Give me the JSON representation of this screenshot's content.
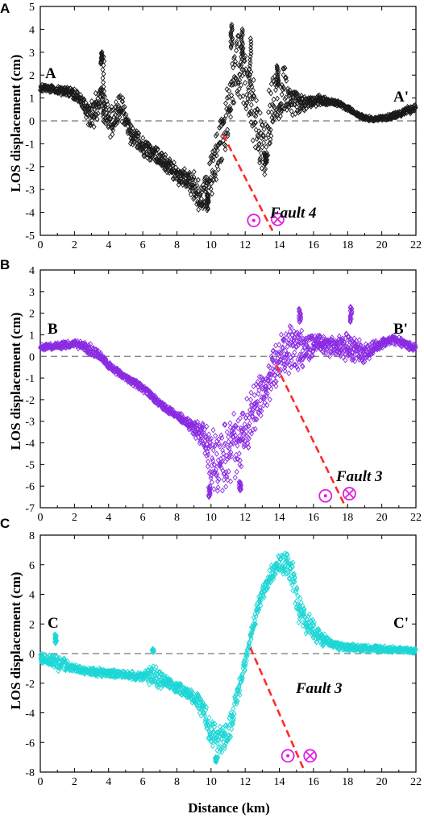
{
  "figure": {
    "x_label": "Distance (km)",
    "y_label": "LOS displacement (cm)"
  },
  "colors": {
    "panel_A": "#1a1a1a",
    "panel_B": "#8a2be2",
    "panel_C": "#1ed6d6",
    "fault_line": "#ff2a2a",
    "symbol": "#e020e0",
    "zero_line": "#777777"
  },
  "chart_data": [
    {
      "type": "scatter",
      "panel": "A",
      "start_label": "A",
      "end_label": "A'",
      "fault_label": "Fault 4",
      "xlim": [
        0,
        22
      ],
      "ylim": [
        -5,
        5
      ],
      "xticks": [
        0,
        2,
        4,
        6,
        8,
        10,
        12,
        14,
        16,
        18,
        20,
        22
      ],
      "yticks": [
        -5,
        -4,
        -3,
        -2,
        -1,
        0,
        1,
        2,
        3,
        4,
        5
      ],
      "marker": "diamond-open",
      "zero_line": true,
      "fault_trace": [
        [
          10.7,
          -0.6
        ],
        [
          13.6,
          -4.8
        ]
      ],
      "motion_symbols": [
        {
          "type": "out-of-page",
          "x": 12.5,
          "y": -4.35
        },
        {
          "type": "into-page",
          "x": 13.9,
          "y": -4.3
        }
      ],
      "profile": [
        [
          0.0,
          1.45
        ],
        [
          0.5,
          1.4
        ],
        [
          1.0,
          1.35
        ],
        [
          1.5,
          1.3
        ],
        [
          2.0,
          1.2
        ],
        [
          2.5,
          0.8
        ],
        [
          2.8,
          0.3
        ],
        [
          3.0,
          0.2
        ],
        [
          3.3,
          0.7
        ],
        [
          3.6,
          0.9
        ],
        [
          3.8,
          0.5
        ],
        [
          4.1,
          -0.2
        ],
        [
          4.5,
          0.4
        ],
        [
          4.8,
          0.6
        ],
        [
          5.0,
          0.3
        ],
        [
          5.3,
          -0.6
        ],
        [
          5.6,
          -0.7
        ],
        [
          6.0,
          -1.1
        ],
        [
          6.5,
          -1.4
        ],
        [
          7.0,
          -1.6
        ],
        [
          7.5,
          -2.0
        ],
        [
          8.0,
          -2.3
        ],
        [
          8.5,
          -2.6
        ],
        [
          9.0,
          -2.9
        ],
        [
          9.5,
          -3.3
        ],
        [
          10.0,
          -2.6
        ],
        [
          10.4,
          -1.3
        ],
        [
          10.8,
          -0.2
        ],
        [
          11.2,
          1.5
        ],
        [
          11.6,
          2.6
        ],
        [
          12.0,
          1.8
        ],
        [
          12.4,
          0.6
        ],
        [
          12.8,
          -0.5
        ],
        [
          13.2,
          -0.9
        ],
        [
          13.5,
          0.4
        ],
        [
          13.9,
          1.3
        ],
        [
          14.3,
          1.4
        ],
        [
          14.8,
          0.9
        ],
        [
          15.2,
          0.7
        ],
        [
          16.0,
          0.9
        ],
        [
          17.0,
          0.85
        ],
        [
          17.5,
          0.75
        ],
        [
          18.0,
          0.55
        ],
        [
          18.5,
          0.3
        ],
        [
          19.0,
          0.12
        ],
        [
          19.5,
          0.08
        ],
        [
          20.0,
          0.1
        ],
        [
          20.5,
          0.2
        ],
        [
          21.0,
          0.3
        ],
        [
          21.5,
          0.45
        ],
        [
          22.0,
          0.55
        ]
      ],
      "spread": [
        [
          0.0,
          0.12
        ],
        [
          2.5,
          0.25
        ],
        [
          3.3,
          0.8
        ],
        [
          4.0,
          0.6
        ],
        [
          5.5,
          0.5
        ],
        [
          7.0,
          0.35
        ],
        [
          8.5,
          0.4
        ],
        [
          9.5,
          0.8
        ],
        [
          10.5,
          1.2
        ],
        [
          11.5,
          1.3
        ],
        [
          12.5,
          1.4
        ],
        [
          13.5,
          1.4
        ],
        [
          14.5,
          0.8
        ],
        [
          15.5,
          0.3
        ],
        [
          17.0,
          0.12
        ],
        [
          19.0,
          0.08
        ],
        [
          20.0,
          0.1
        ],
        [
          22.0,
          0.15
        ]
      ],
      "spikes": [
        [
          3.6,
          2.5,
          3.0
        ],
        [
          3.7,
          2.8,
          0.0
        ],
        [
          11.2,
          3.2,
          4.2
        ],
        [
          11.8,
          2.8,
          4.0
        ],
        [
          12.3,
          1.6,
          3.6
        ],
        [
          9.8,
          -3.2,
          -3.9
        ],
        [
          13.2,
          -1.4,
          -1.9
        ],
        [
          13.9,
          1.6,
          2.4
        ]
      ]
    },
    {
      "type": "scatter",
      "panel": "B",
      "start_label": "B",
      "end_label": "B'",
      "fault_label": "Fault 3",
      "xlim": [
        0,
        22
      ],
      "ylim": [
        -7,
        4
      ],
      "xticks": [
        0,
        2,
        4,
        6,
        8,
        10,
        12,
        14,
        16,
        18,
        20,
        22
      ],
      "yticks": [
        -7,
        -6,
        -5,
        -4,
        -3,
        -2,
        -1,
        0,
        1,
        2,
        3,
        4
      ],
      "marker": "diamond-open",
      "zero_line": true,
      "fault_trace": [
        [
          13.8,
          -0.4
        ],
        [
          17.9,
          -7.0
        ]
      ],
      "motion_symbols": [
        {
          "type": "out-of-page",
          "x": 16.7,
          "y": -6.45
        },
        {
          "type": "into-page",
          "x": 18.1,
          "y": -6.35
        }
      ],
      "profile": [
        [
          0.0,
          0.4
        ],
        [
          0.5,
          0.45
        ],
        [
          1.0,
          0.5
        ],
        [
          1.5,
          0.55
        ],
        [
          2.0,
          0.6
        ],
        [
          2.5,
          0.5
        ],
        [
          3.0,
          0.3
        ],
        [
          3.5,
          0.0
        ],
        [
          4.0,
          -0.4
        ],
        [
          4.5,
          -0.7
        ],
        [
          5.0,
          -1.0
        ],
        [
          5.5,
          -1.2
        ],
        [
          6.0,
          -1.5
        ],
        [
          6.5,
          -1.8
        ],
        [
          7.0,
          -2.2
        ],
        [
          7.5,
          -2.5
        ],
        [
          8.0,
          -2.7
        ],
        [
          8.5,
          -3.0
        ],
        [
          9.0,
          -3.3
        ],
        [
          9.5,
          -3.7
        ],
        [
          10.0,
          -4.7
        ],
        [
          10.5,
          -4.8
        ],
        [
          11.0,
          -4.5
        ],
        [
          11.5,
          -4.2
        ],
        [
          12.0,
          -3.5
        ],
        [
          12.5,
          -2.5
        ],
        [
          13.0,
          -1.7
        ],
        [
          13.5,
          -1.0
        ],
        [
          14.0,
          -0.2
        ],
        [
          14.5,
          0.4
        ],
        [
          15.0,
          0.6
        ],
        [
          15.5,
          0.4
        ],
        [
          16.0,
          0.5
        ],
        [
          16.5,
          0.55
        ],
        [
          17.0,
          0.45
        ],
        [
          17.5,
          0.4
        ],
        [
          18.0,
          0.5
        ],
        [
          18.5,
          0.3
        ],
        [
          19.0,
          0.15
        ],
        [
          19.5,
          0.35
        ],
        [
          20.0,
          0.6
        ],
        [
          20.5,
          0.8
        ],
        [
          21.0,
          0.7
        ],
        [
          21.5,
          0.5
        ],
        [
          22.0,
          0.4
        ]
      ],
      "spread": [
        [
          0.0,
          0.12
        ],
        [
          2.0,
          0.15
        ],
        [
          3.0,
          0.25
        ],
        [
          4.0,
          0.15
        ],
        [
          8.0,
          0.15
        ],
        [
          9.3,
          0.4
        ],
        [
          10.0,
          1.3
        ],
        [
          11.0,
          1.5
        ],
        [
          12.0,
          1.3
        ],
        [
          13.0,
          1.0
        ],
        [
          14.0,
          1.0
        ],
        [
          15.0,
          1.1
        ],
        [
          16.0,
          0.45
        ],
        [
          17.0,
          0.4
        ],
        [
          18.0,
          0.6
        ],
        [
          19.0,
          0.45
        ],
        [
          20.0,
          0.2
        ],
        [
          22.0,
          0.15
        ]
      ],
      "spikes": [
        [
          9.9,
          -6.0,
          -6.5
        ],
        [
          11.7,
          -5.8,
          -6.2
        ],
        [
          15.2,
          1.6,
          2.2
        ],
        [
          18.2,
          1.6,
          2.3
        ]
      ]
    },
    {
      "type": "scatter",
      "panel": "C",
      "start_label": "C",
      "end_label": "C'",
      "fault_label": "Fault 3",
      "xlim": [
        0,
        22
      ],
      "ylim": [
        -8,
        8
      ],
      "xticks": [
        0,
        2,
        4,
        6,
        8,
        10,
        12,
        14,
        16,
        18,
        20,
        22
      ],
      "yticks": [
        -8,
        -6,
        -4,
        -2,
        0,
        2,
        4,
        6,
        8
      ],
      "marker": "diamond-open",
      "zero_line": true,
      "fault_trace": [
        [
          12.3,
          0.4
        ],
        [
          15.5,
          -8.0
        ]
      ],
      "motion_symbols": [
        {
          "type": "out-of-page",
          "x": 14.5,
          "y": -6.9
        },
        {
          "type": "into-page",
          "x": 15.8,
          "y": -6.9
        }
      ],
      "profile": [
        [
          0.0,
          -0.3
        ],
        [
          0.7,
          -0.4
        ],
        [
          1.0,
          -0.6
        ],
        [
          1.5,
          -0.8
        ],
        [
          2.0,
          -1.0
        ],
        [
          3.0,
          -1.2
        ],
        [
          4.0,
          -1.35
        ],
        [
          5.0,
          -1.45
        ],
        [
          6.0,
          -1.55
        ],
        [
          6.5,
          -1.4
        ],
        [
          7.0,
          -1.7
        ],
        [
          7.5,
          -2.0
        ],
        [
          8.0,
          -2.3
        ],
        [
          8.5,
          -2.6
        ],
        [
          9.0,
          -3.0
        ],
        [
          9.5,
          -3.6
        ],
        [
          10.0,
          -5.4
        ],
        [
          10.4,
          -6.1
        ],
        [
          10.8,
          -5.8
        ],
        [
          11.2,
          -4.5
        ],
        [
          11.6,
          -2.5
        ],
        [
          12.0,
          -0.6
        ],
        [
          12.4,
          1.5
        ],
        [
          12.8,
          3.4
        ],
        [
          13.2,
          4.6
        ],
        [
          13.6,
          5.5
        ],
        [
          14.0,
          6.0
        ],
        [
          14.4,
          6.1
        ],
        [
          14.8,
          5.0
        ],
        [
          15.2,
          3.0
        ],
        [
          15.6,
          2.0
        ],
        [
          16.0,
          1.6
        ],
        [
          16.5,
          1.0
        ],
        [
          17.0,
          0.7
        ],
        [
          17.5,
          0.5
        ],
        [
          18.0,
          0.4
        ],
        [
          19.0,
          0.35
        ],
        [
          20.0,
          0.3
        ],
        [
          21.0,
          0.25
        ],
        [
          22.0,
          0.2
        ]
      ],
      "spread": [
        [
          0.0,
          0.25
        ],
        [
          1.0,
          0.5
        ],
        [
          2.0,
          0.25
        ],
        [
          6.0,
          0.25
        ],
        [
          6.6,
          0.8
        ],
        [
          7.5,
          0.35
        ],
        [
          9.0,
          0.4
        ],
        [
          10.0,
          1.0
        ],
        [
          11.0,
          1.0
        ],
        [
          12.0,
          0.5
        ],
        [
          13.0,
          0.5
        ],
        [
          14.0,
          0.6
        ],
        [
          15.0,
          1.1
        ],
        [
          16.0,
          0.6
        ],
        [
          17.0,
          0.25
        ],
        [
          22.0,
          0.15
        ]
      ],
      "spikes": [
        [
          0.9,
          0.7,
          1.3
        ],
        [
          6.6,
          0.1,
          0.3
        ],
        [
          10.3,
          -7.0,
          -7.3
        ]
      ]
    }
  ]
}
